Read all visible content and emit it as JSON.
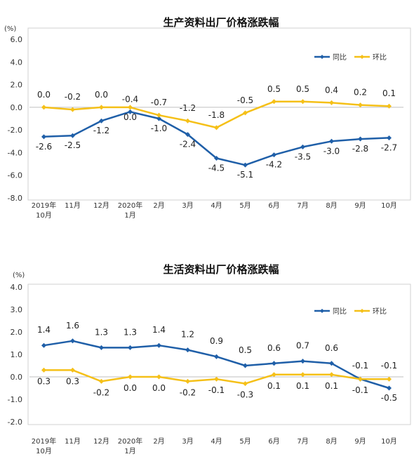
{
  "chart_data": [
    {
      "type": "line",
      "title": "生产资料出厂价格涨跌幅",
      "unit": "(%)",
      "categories": [
        "2019年|10月",
        "11月",
        "12月",
        "2020年|1月",
        "2月",
        "3月",
        "4月",
        "5月",
        "6月",
        "7月",
        "8月",
        "9月",
        "10月"
      ],
      "ylim": [
        -8.0,
        6.0
      ],
      "yticks": [
        "6.0",
        "4.0",
        "2.0",
        "0.0",
        "-2.0",
        "-4.0",
        "-6.0",
        "-8.0"
      ],
      "legend_position": "top-right",
      "series": [
        {
          "name": "同比",
          "color": "#1f5fa8",
          "values": [
            -2.6,
            -2.5,
            -1.2,
            -0.4,
            -1.0,
            -2.4,
            -4.5,
            -5.1,
            -4.2,
            -3.5,
            -3.0,
            -2.8,
            -2.7
          ],
          "labels": [
            "-2.6",
            "-2.5",
            "-1.2",
            "-0.4",
            "-1.0",
            "-2.4",
            "-4.5",
            "-5.1",
            "-4.2",
            "-3.5",
            "-3.0",
            "-2.8",
            "-2.7"
          ]
        },
        {
          "name": "环比",
          "color": "#f5c018",
          "values": [
            0.0,
            -0.2,
            0.0,
            0.0,
            -0.7,
            -1.2,
            -1.8,
            -0.5,
            0.5,
            0.5,
            0.4,
            0.2,
            0.1
          ],
          "labels": [
            "0.0",
            "-0.2",
            "0.0",
            "0.0",
            "-0.7",
            "-1.2",
            "-1.8",
            "-0.5",
            "0.5",
            "0.5",
            "0.4",
            "0.2",
            "0.1"
          ]
        }
      ]
    },
    {
      "type": "line",
      "title": "生活资料出厂价格涨跌幅",
      "unit": "(%)",
      "categories": [
        "2019年|10月",
        "11月",
        "12月",
        "2020年|1月",
        "2月",
        "3月",
        "4月",
        "5月",
        "6月",
        "7月",
        "8月",
        "9月",
        "10月"
      ],
      "ylim": [
        -2.0,
        4.0
      ],
      "yticks": [
        "4.0",
        "3.0",
        "2.0",
        "1.0",
        "0.0",
        "-1.0",
        "-2.0"
      ],
      "legend_position": "top-right",
      "series": [
        {
          "name": "同比",
          "color": "#1f5fa8",
          "values": [
            1.4,
            1.6,
            1.3,
            1.3,
            1.4,
            1.2,
            0.9,
            0.5,
            0.6,
            0.7,
            0.6,
            -0.1,
            -0.5
          ],
          "labels": [
            "1.4",
            "1.6",
            "1.3",
            "1.3",
            "1.4",
            "1.2",
            "0.9",
            "0.5",
            "0.6",
            "0.7",
            "0.6",
            "-0.1",
            "-0.5"
          ]
        },
        {
          "name": "环比",
          "color": "#f5c018",
          "values": [
            0.3,
            0.3,
            -0.2,
            0.0,
            0.0,
            -0.2,
            -0.1,
            -0.3,
            0.1,
            0.1,
            0.1,
            -0.1,
            -0.1
          ],
          "labels": [
            "0.3",
            "0.3",
            "-0.2",
            "0.0",
            "0.0",
            "-0.2",
            "-0.1",
            "-0.3",
            "0.1",
            "0.1",
            "0.1",
            "-0.1",
            "-0.1"
          ]
        }
      ]
    }
  ]
}
